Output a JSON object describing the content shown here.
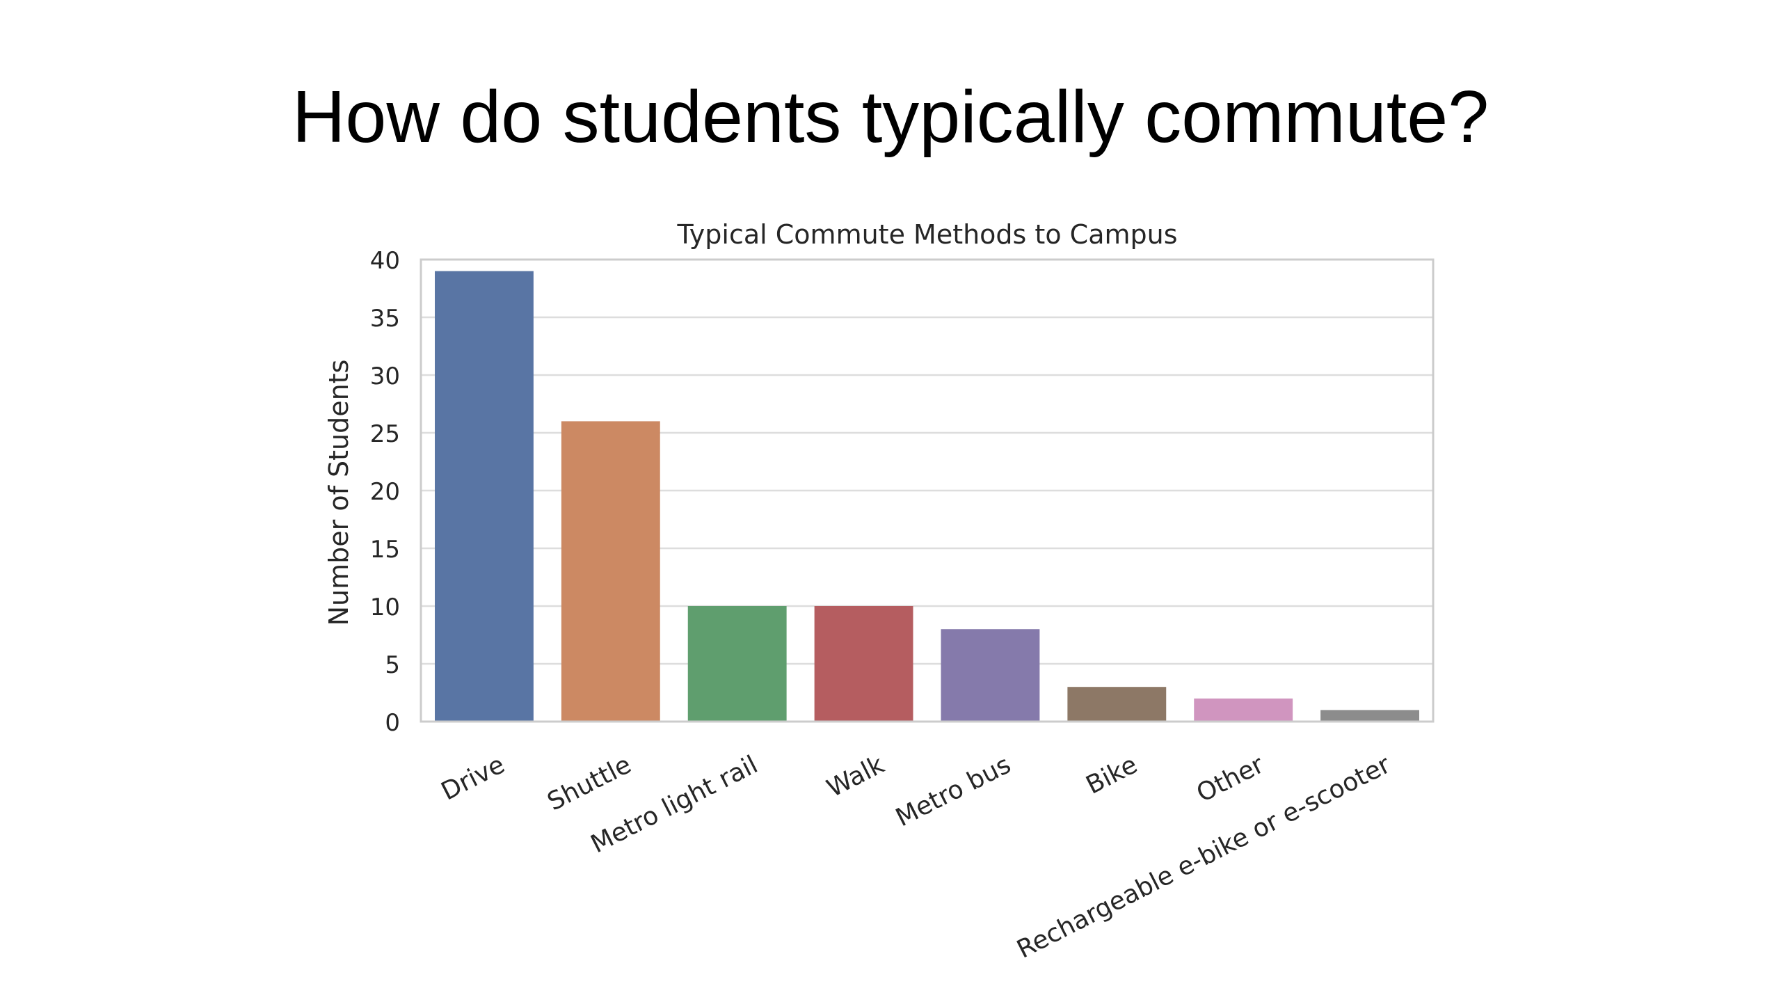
{
  "slide": {
    "title": "How do students typically commute?"
  },
  "chart_data": {
    "type": "bar",
    "title": "Typical Commute Methods to Campus",
    "xlabel": "",
    "ylabel": "Number of Students",
    "categories": [
      "Drive",
      "Shuttle",
      "Metro light rail",
      "Walk",
      "Metro bus",
      "Bike",
      "Other",
      "Rechargeable e-bike or e-scooter"
    ],
    "values": [
      39,
      26,
      10,
      10,
      8,
      3,
      2,
      1
    ],
    "colors": [
      "#5975a4",
      "#cc8963",
      "#5f9e6e",
      "#b55d60",
      "#857aab",
      "#8d7866",
      "#d095bf",
      "#8c8c8c"
    ],
    "ylim": [
      0,
      40
    ],
    "yticks": [
      0,
      5,
      10,
      15,
      20,
      25,
      30,
      35,
      40
    ],
    "grid": "horizontal",
    "background": "#ffffff",
    "grid_color": "#dddddd",
    "frame_color": "#cccccc"
  }
}
